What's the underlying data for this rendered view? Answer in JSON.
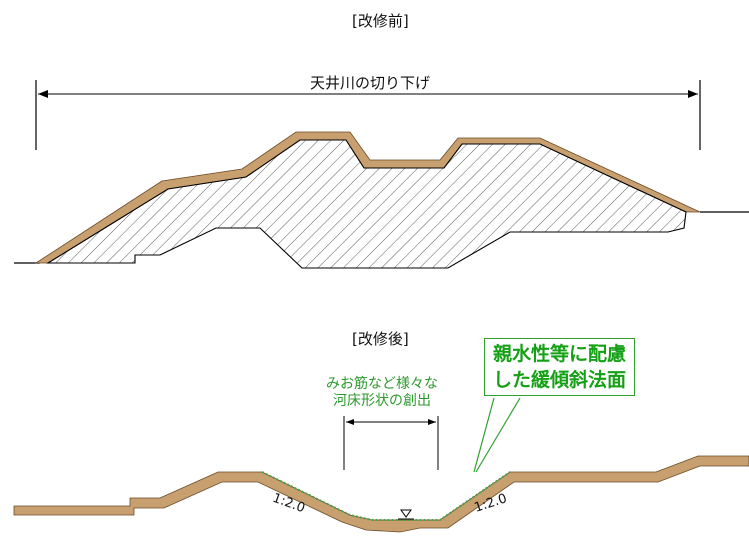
{
  "before": {
    "heading": "[改修前]",
    "dimension_label": "天井川の切り下げ"
  },
  "after": {
    "heading": "[改修後]",
    "callout": {
      "line1": "親水性等に配慮",
      "line2": "した緩傾斜法面"
    },
    "note": {
      "line1": "みお筋など様々な",
      "line2": "河床形状の創出"
    },
    "slope_left": "1:2.0",
    "slope_right": "1:2.0"
  },
  "colors": {
    "earth": "#c8a070",
    "hatch": "#333333",
    "callout_green": "#15a015",
    "grass_green": "#4aa34a"
  }
}
